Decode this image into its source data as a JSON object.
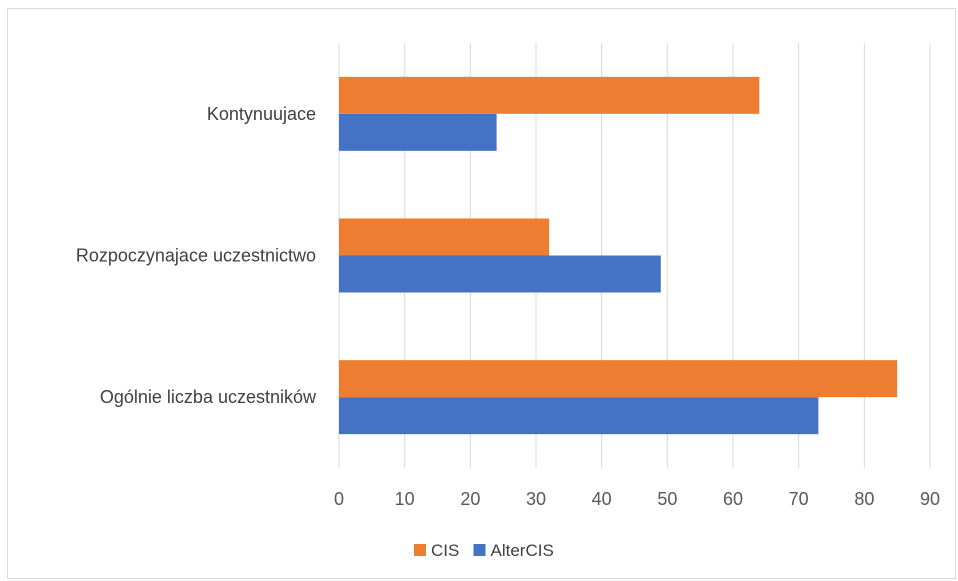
{
  "chart_data": {
    "type": "bar",
    "orientation": "horizontal",
    "categories": [
      "Ogólnie liczba uczestników",
      "Rozpoczynajace uczestnictwo",
      "Kontynuujace"
    ],
    "series": [
      {
        "name": "AlterCIS",
        "color": "#4472c4",
        "values": [
          73,
          49,
          24
        ]
      },
      {
        "name": "CIS",
        "color": "#ed7d31",
        "values": [
          85,
          32,
          64
        ]
      }
    ],
    "x_ticks": [
      "0",
      "10",
      "20",
      "30",
      "40",
      "50",
      "60",
      "70",
      "80",
      "90"
    ],
    "xlim": [
      0,
      90
    ],
    "grid": true,
    "legend": {
      "position": "bottom",
      "order": [
        "CIS",
        "AlterCIS"
      ]
    }
  }
}
